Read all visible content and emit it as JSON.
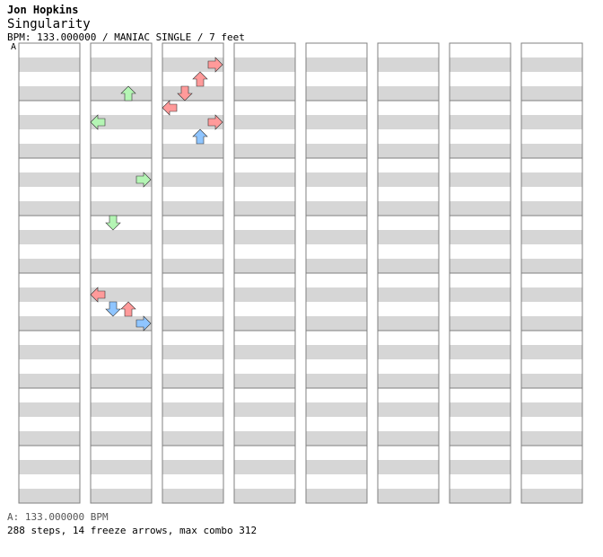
{
  "header": {
    "artist": "Jon Hopkins",
    "title": "Singularity",
    "meta": "BPM: 133.000000 / MANIAC SINGLE / 7 feet",
    "bpm_marker": "A"
  },
  "footer": {
    "bpm_line": "A: 133.000000 BPM",
    "stats": "288 steps, 14 freeze arrows, max combo 312"
  },
  "colors": {
    "stripe": "#d6d6d6",
    "frame": "#808080",
    "eighth": "#ff9a9a",
    "quarter_blue": "#8fc5ff",
    "sixteenth": "#ffb8ff",
    "freeze": "#b4f5b4"
  },
  "chart_data": {
    "type": "step-chart",
    "columns": 8,
    "lanes": [
      "left",
      "down",
      "up",
      "right"
    ],
    "columns_data": [
      {
        "notes": [],
        "freezes": []
      },
      {
        "notes": [
          {
            "lane": "up",
            "beat": 3,
            "color": "green"
          },
          {
            "lane": "left",
            "beat": 5,
            "color": "green"
          },
          {
            "lane": "right",
            "beat": 9,
            "color": "green"
          },
          {
            "lane": "down",
            "beat": 12,
            "color": "green"
          },
          {
            "lane": "left",
            "beat": 17,
            "color": "red"
          },
          {
            "lane": "down",
            "beat": 18,
            "color": "blue"
          },
          {
            "lane": "up",
            "beat": 18,
            "color": "red"
          },
          {
            "lane": "right",
            "beat": 19,
            "color": "blue"
          }
        ],
        "freezes": []
      },
      {
        "notes": [
          {
            "lane": "right",
            "beat": 1,
            "color": "red"
          },
          {
            "lane": "up",
            "beat": 2,
            "color": "red"
          },
          {
            "lane": "down",
            "beat": 3,
            "color": "red"
          },
          {
            "lane": "left",
            "beat": 4,
            "color": "red"
          },
          {
            "lane": "right",
            "beat": 5,
            "color": "red"
          },
          {
            "lane": "up",
            "beat": 6,
            "color": "blue"
          }
        ],
        "freezes": []
      }
    ]
  }
}
